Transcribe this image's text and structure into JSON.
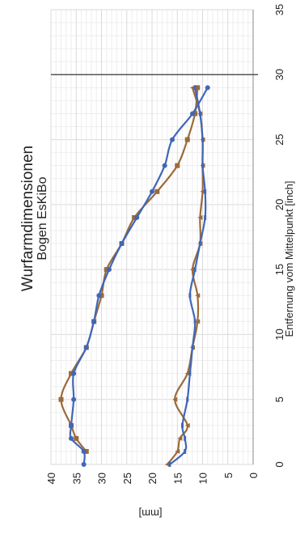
{
  "chart_data": {
    "type": "scatter",
    "orientation": "rotated-90-ccw",
    "title": "Wurfarmdimensionen",
    "subtitle": "Bogen EsKiBo",
    "xlabel": "Entfernung vom Mittelpunkt [inch]",
    "ylabel": "[mm]",
    "xlim": [
      0,
      35
    ],
    "ylim": [
      0,
      40
    ],
    "x_ticks": [
      "0",
      "5",
      "10",
      "15",
      "20",
      "25",
      "30",
      "35"
    ],
    "y_ticks": [
      "0",
      "5",
      "10",
      "15",
      "20",
      "25",
      "30",
      "35",
      "40"
    ],
    "grid": true,
    "reference_line_x": 30,
    "colors": {
      "brown": "#9b6a3a",
      "blue": "#4066b8",
      "grid": "#d9d9d9",
      "axis": "#888888"
    },
    "series": [
      {
        "marker": "square",
        "color": "#9b6a3a",
        "points": [
          [
            1,
            33
          ],
          [
            2,
            35
          ],
          [
            3,
            36
          ],
          [
            5,
            38
          ],
          [
            7,
            36
          ],
          [
            9,
            33
          ],
          [
            11,
            31.5
          ],
          [
            13,
            30
          ],
          [
            15,
            29
          ],
          [
            17,
            26
          ],
          [
            19,
            23.5
          ],
          [
            21,
            19
          ],
          [
            23,
            15
          ],
          [
            25,
            13
          ],
          [
            27,
            11.5
          ],
          [
            29,
            11
          ]
        ]
      },
      {
        "marker": "circle",
        "color": "#4066b8",
        "points": [
          [
            0,
            33.5
          ],
          [
            1,
            33.5
          ],
          [
            2,
            36
          ],
          [
            3,
            36
          ],
          [
            5,
            35.5
          ],
          [
            7,
            35.5
          ],
          [
            9,
            33
          ],
          [
            11,
            31.5
          ],
          [
            13,
            30.5
          ],
          [
            15,
            28.5
          ],
          [
            17,
            26
          ],
          [
            19,
            23
          ],
          [
            21,
            20
          ],
          [
            23,
            17.5
          ],
          [
            25,
            16
          ],
          [
            27,
            12
          ],
          [
            29,
            9
          ]
        ]
      },
      {
        "marker": "triangle",
        "color": "#9b6a3a",
        "points": [
          [
            0,
            17
          ],
          [
            1,
            15
          ],
          [
            2,
            14.5
          ],
          [
            3,
            13
          ],
          [
            5,
            15.5
          ],
          [
            7,
            13
          ],
          [
            9,
            12
          ],
          [
            11,
            11
          ],
          [
            13,
            11
          ],
          [
            15,
            12
          ],
          [
            17,
            10.5
          ],
          [
            19,
            10.5
          ],
          [
            21,
            10
          ],
          [
            23,
            10
          ],
          [
            25,
            10
          ],
          [
            27,
            10.5
          ],
          [
            29,
            12
          ]
        ]
      },
      {
        "marker": "dash",
        "color": "#4066b8",
        "points": [
          [
            0,
            16.5
          ],
          [
            1,
            13.5
          ],
          [
            2,
            13.5
          ],
          [
            3,
            14
          ],
          [
            5,
            13
          ],
          [
            7,
            12.5
          ],
          [
            9,
            12
          ],
          [
            11,
            11.5
          ],
          [
            13,
            12.5
          ],
          [
            15,
            11.5
          ],
          [
            17,
            10.5
          ],
          [
            19,
            9.5
          ],
          [
            21,
            9.5
          ],
          [
            23,
            10
          ],
          [
            25,
            10
          ],
          [
            27,
            10.5
          ],
          [
            29,
            11.5
          ]
        ]
      }
    ]
  }
}
